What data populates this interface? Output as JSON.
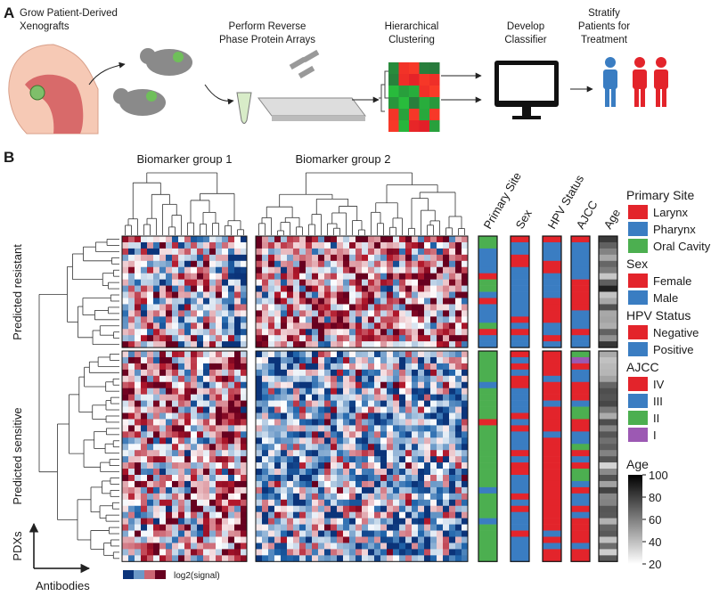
{
  "panel_a": {
    "label": "A",
    "steps": [
      {
        "lines": [
          "Grow Patient-Derived",
          "Xenografts"
        ]
      },
      {
        "lines": [
          "Perform Reverse",
          "Phase Protein Arrays"
        ]
      },
      {
        "lines": [
          "Hierarchical",
          "Clustering"
        ]
      },
      {
        "lines": [
          "Develop",
          "Classifier"
        ]
      },
      {
        "lines": [
          "Stratify",
          "Patients for",
          "Treatment"
        ]
      }
    ]
  },
  "panel_b": {
    "label": "B",
    "group_labels": [
      "Biomarker group 1",
      "Biomarker group 2"
    ],
    "row_labels": [
      "Predicted resistant",
      "Predicted sensitive"
    ],
    "annotation_columns": [
      "Primary Site",
      "Sex",
      "HPV Status",
      "AJCC",
      "Age"
    ],
    "legend": [
      {
        "title": "Primary Site",
        "items": [
          {
            "label": "Larynx",
            "color": "#e3242b"
          },
          {
            "label": "Pharynx",
            "color": "#3a7dc2"
          },
          {
            "label": "Oral Cavity",
            "color": "#4caf50"
          }
        ]
      },
      {
        "title": "Sex",
        "items": [
          {
            "label": "Female",
            "color": "#e3242b"
          },
          {
            "label": "Male",
            "color": "#3a7dc2"
          }
        ]
      },
      {
        "title": "HPV Status",
        "items": [
          {
            "label": "Negative",
            "color": "#e3242b"
          },
          {
            "label": "Positive",
            "color": "#3a7dc2"
          }
        ]
      },
      {
        "title": "AJCC",
        "items": [
          {
            "label": "IV",
            "color": "#e3242b"
          },
          {
            "label": "III",
            "color": "#3a7dc2"
          },
          {
            "label": "II",
            "color": "#4caf50"
          },
          {
            "label": "I",
            "color": "#9c59b3"
          }
        ]
      }
    ],
    "age_legend": {
      "title": "Age",
      "ticks": [
        100,
        80,
        60,
        40,
        20
      ],
      "range": [
        20,
        100
      ]
    },
    "color_key_label": "log2(signal)",
    "axis_labels": {
      "y": "PDXs",
      "x": "Antibodies"
    }
  }
}
